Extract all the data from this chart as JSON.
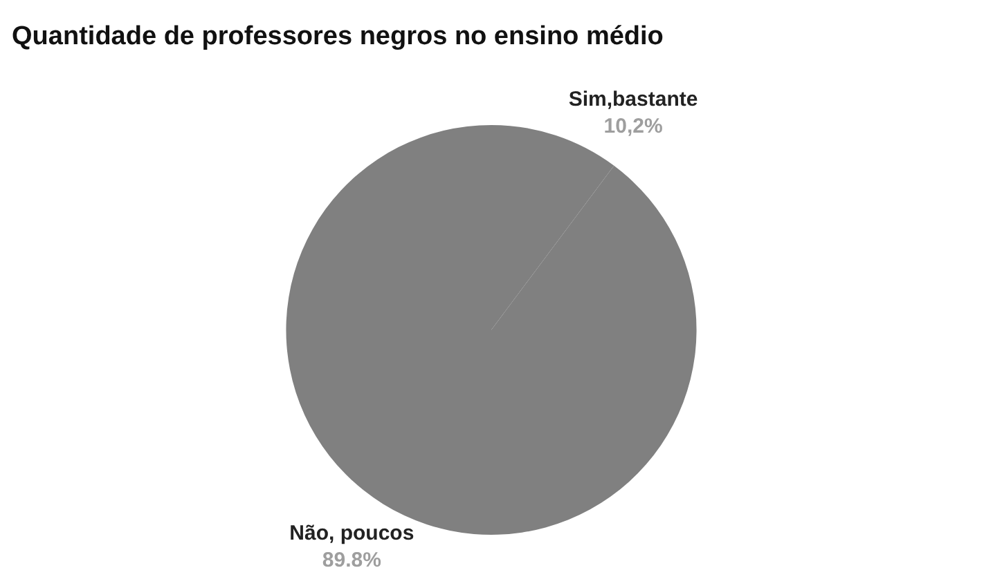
{
  "chart_data": {
    "type": "pie",
    "title": "Quantidade de professores negros no ensino médio",
    "categories": [
      "Sim,bastante",
      "Não, poucos"
    ],
    "values": [
      10.2,
      89.8
    ],
    "value_labels": [
      "10,2%",
      "89.8%"
    ],
    "colors": [
      "#808080",
      "#808080"
    ],
    "legend": false
  }
}
